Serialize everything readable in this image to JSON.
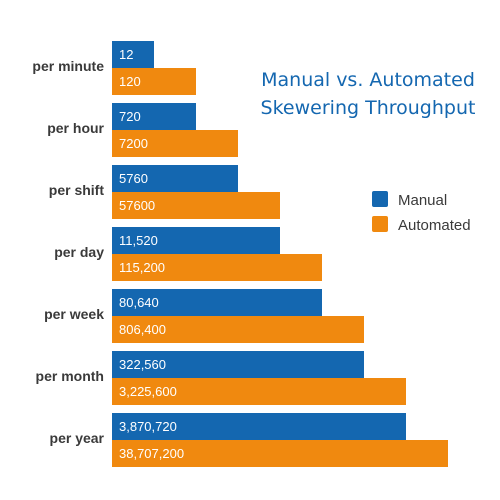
{
  "chart_data": {
    "type": "bar",
    "orientation": "horizontal",
    "title_lines": [
      "Manual vs. Automated",
      "Skewering Throughput"
    ],
    "categories": [
      "per minute",
      "per hour",
      "per shift",
      "per day",
      "per week",
      "per month",
      "per year"
    ],
    "series": [
      {
        "name": "Manual",
        "color": "#1467b0",
        "values": [
          12,
          720,
          5760,
          11520,
          80640,
          322560,
          3870720
        ],
        "value_labels": [
          "12",
          "720",
          "5760",
          "11,520",
          "80,640",
          "322,560",
          "3,870,720"
        ]
      },
      {
        "name": "Automated",
        "color": "#f0890f",
        "values": [
          120,
          7200,
          57600,
          115200,
          806400,
          3225600,
          38707200
        ],
        "value_labels": [
          "120",
          "7200",
          "57600",
          "115,200",
          "806,400",
          "3,225,600",
          "38,707,200"
        ]
      }
    ],
    "legend_position": "right",
    "grid": false
  }
}
